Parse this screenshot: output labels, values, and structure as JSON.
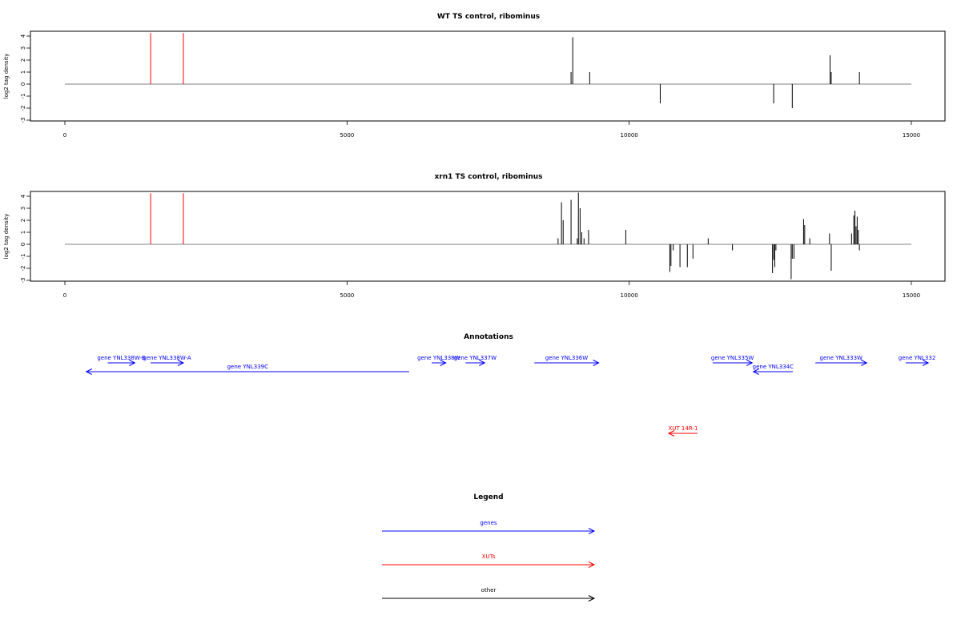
{
  "chart_data": [
    {
      "type": "bar",
      "title": "WT TS control, ribominus",
      "ylabel": "log2 tag density",
      "xlabel": "",
      "xlim": [
        0,
        15000
      ],
      "ylim": [
        -3,
        4
      ],
      "x_ticks": [
        0,
        5000,
        10000,
        15000
      ],
      "y_ticks": [
        -3,
        -2,
        -1,
        0,
        1,
        2,
        3,
        4
      ],
      "highlight_color": "#ff0000",
      "series": [
        {
          "color": "#ff0000",
          "points": [
            {
              "x": 1520,
              "y": 4.25
            },
            {
              "x": 2100,
              "y": 4.25
            }
          ]
        },
        {
          "color": "#000000",
          "points": [
            {
              "x": 8970,
              "y": 1.0
            },
            {
              "x": 9000,
              "y": 3.9
            },
            {
              "x": 9300,
              "y": 1.0
            },
            {
              "x": 10550,
              "y": -1.6
            },
            {
              "x": 12560,
              "y": -1.6
            },
            {
              "x": 12890,
              "y": -2.0
            },
            {
              "x": 13560,
              "y": 2.4
            },
            {
              "x": 13580,
              "y": 1.0
            },
            {
              "x": 14080,
              "y": 1.0
            }
          ]
        }
      ]
    },
    {
      "type": "bar",
      "title": "xrn1 TS control, ribominus",
      "ylabel": "log2 tag density",
      "xlabel": "",
      "xlim": [
        0,
        15000
      ],
      "ylim": [
        -3,
        4
      ],
      "x_ticks": [
        0,
        5000,
        10000,
        15000
      ],
      "y_ticks": [
        -3,
        -2,
        -1,
        0,
        1,
        2,
        3,
        4
      ],
      "highlight_color": "#ff0000",
      "series": [
        {
          "color": "#ff0000",
          "points": [
            {
              "x": 1520,
              "y": 4.25
            },
            {
              "x": 2100,
              "y": 4.25
            }
          ]
        },
        {
          "color": "#000000",
          "points": [
            {
              "x": 8740,
              "y": 0.5
            },
            {
              "x": 8800,
              "y": 3.5
            },
            {
              "x": 8830,
              "y": 2.0
            },
            {
              "x": 8970,
              "y": 3.7
            },
            {
              "x": 9080,
              "y": 0.5
            },
            {
              "x": 9100,
              "y": 4.3
            },
            {
              "x": 9130,
              "y": 3.0
            },
            {
              "x": 9160,
              "y": 1.0
            },
            {
              "x": 9200,
              "y": 0.5
            },
            {
              "x": 9280,
              "y": 1.2
            },
            {
              "x": 9940,
              "y": 1.2
            },
            {
              "x": 10720,
              "y": -2.3
            },
            {
              "x": 10740,
              "y": -1.8
            },
            {
              "x": 10780,
              "y": -0.5
            },
            {
              "x": 10900,
              "y": -1.9
            },
            {
              "x": 11030,
              "y": -1.9
            },
            {
              "x": 11130,
              "y": -1.2
            },
            {
              "x": 11400,
              "y": 0.5
            },
            {
              "x": 11830,
              "y": -0.5
            },
            {
              "x": 12540,
              "y": -2.4
            },
            {
              "x": 12560,
              "y": -1.3
            },
            {
              "x": 12580,
              "y": -1.9
            },
            {
              "x": 12600,
              "y": -0.5
            },
            {
              "x": 12870,
              "y": -2.9
            },
            {
              "x": 12890,
              "y": -1.2
            },
            {
              "x": 12920,
              "y": -1.2
            },
            {
              "x": 13090,
              "y": 2.1
            },
            {
              "x": 13110,
              "y": 1.6
            },
            {
              "x": 13200,
              "y": 0.5
            },
            {
              "x": 13550,
              "y": 0.9
            },
            {
              "x": 13580,
              "y": -2.2
            },
            {
              "x": 13940,
              "y": 0.9
            },
            {
              "x": 13980,
              "y": 2.4
            },
            {
              "x": 14000,
              "y": 2.8
            },
            {
              "x": 14020,
              "y": 1.5
            },
            {
              "x": 14040,
              "y": 2.3
            },
            {
              "x": 14060,
              "y": 1.2
            },
            {
              "x": 14080,
              "y": -0.5
            }
          ]
        }
      ]
    }
  ],
  "annotations": {
    "title": "Annotations",
    "xlim": [
      0,
      15000
    ],
    "features": [
      {
        "label": "gene YNL338W-B",
        "start": 760,
        "end": 1240,
        "strand": "+",
        "row": 0,
        "type": "gene"
      },
      {
        "label": "gene YNL338W-A",
        "start": 1520,
        "end": 2100,
        "strand": "+",
        "row": 0,
        "type": "gene"
      },
      {
        "label": "gene YNL339C",
        "start": 380,
        "end": 6100,
        "strand": "-",
        "row": 1,
        "type": "gene"
      },
      {
        "label": "gene YNL338W",
        "start": 6500,
        "end": 6750,
        "strand": "+",
        "row": 0,
        "type": "gene"
      },
      {
        "label": "gene YNL337W",
        "start": 7100,
        "end": 7440,
        "strand": "+",
        "row": 0,
        "type": "gene"
      },
      {
        "label": "gene YNL336W",
        "start": 8320,
        "end": 9460,
        "strand": "+",
        "row": 0,
        "type": "gene"
      },
      {
        "label": "gene YNL335W",
        "start": 11480,
        "end": 12180,
        "strand": "+",
        "row": 0,
        "type": "gene"
      },
      {
        "label": "gene YNL334C",
        "start": 12200,
        "end": 12900,
        "strand": "-",
        "row": 1,
        "type": "gene"
      },
      {
        "label": "gene YNL333W",
        "start": 13300,
        "end": 14210,
        "strand": "+",
        "row": 0,
        "type": "gene"
      },
      {
        "label": "gene YNL332",
        "start": 14900,
        "end": 15300,
        "strand": "+",
        "row": 0,
        "type": "gene"
      },
      {
        "label": "XUT 14R-1",
        "start": 10700,
        "end": 11210,
        "strand": "-",
        "row": 8,
        "type": "xut"
      }
    ]
  },
  "legend": {
    "title": "Legend",
    "items": [
      {
        "label": "genes",
        "color": "#0000ff"
      },
      {
        "label": "XUTs",
        "color": "#ff0000"
      },
      {
        "label": "other",
        "color": "#000000"
      }
    ]
  },
  "colors": {
    "gene": "#0000ff",
    "xut": "#ff0000",
    "other": "#000000",
    "axis": "#000000",
    "baseline": "#808080"
  }
}
